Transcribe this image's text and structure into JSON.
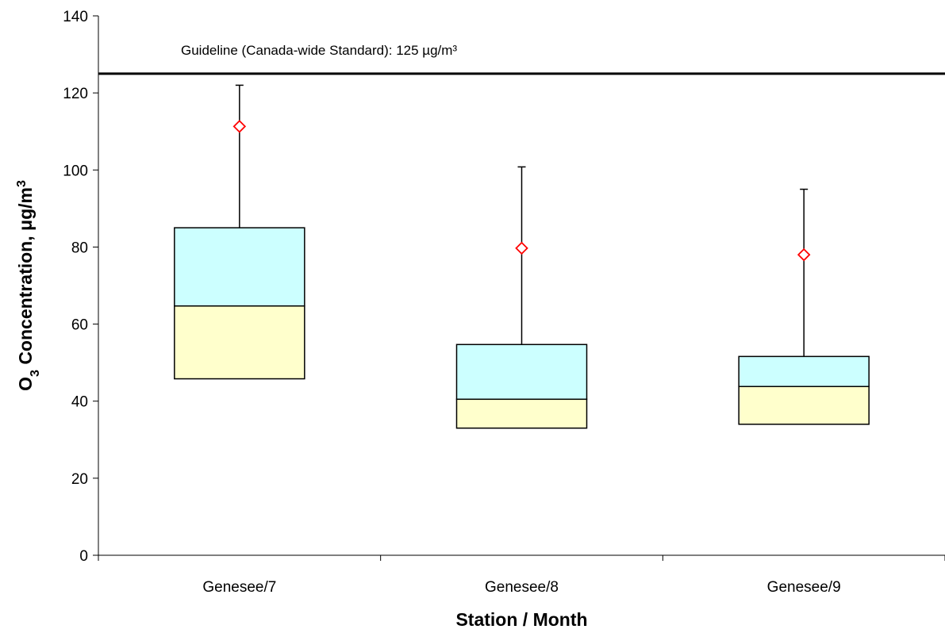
{
  "chart_data": {
    "type": "boxplot",
    "xlabel": "Station / Month",
    "ylabel": {
      "main": "O",
      "subscript": "3",
      "rest": " Concentration, μg/m",
      "superscript": "3"
    },
    "ylim": [
      0,
      140
    ],
    "yticks": [
      "0",
      "20",
      "40",
      "60",
      "80",
      "100",
      "120",
      "140"
    ],
    "categories": [
      "Genesee/7",
      "Genesee/8",
      "Genesee/9"
    ],
    "boxes": [
      {
        "category": "Genesee/7",
        "q1": 45.8,
        "median": 64.7,
        "q3": 85.0,
        "whisker_high": 122.0,
        "max_marker": 111.3
      },
      {
        "category": "Genesee/8",
        "q1": 33.0,
        "median": 40.5,
        "q3": 54.7,
        "whisker_high": 100.8,
        "max_marker": 79.7
      },
      {
        "category": "Genesee/9",
        "q1": 34.0,
        "median": 43.8,
        "q3": 51.6,
        "whisker_high": 95.0,
        "max_marker": 78.0
      }
    ],
    "guideline": {
      "value": 125,
      "label": "Guideline (Canada-wide Standard): 125 µg/m³"
    },
    "colors": {
      "lower_box": "#FFFFCC",
      "upper_box": "#CCFFFF",
      "marker": "#FF0000",
      "lines": "#000000"
    },
    "grid": false,
    "legend": "none"
  }
}
